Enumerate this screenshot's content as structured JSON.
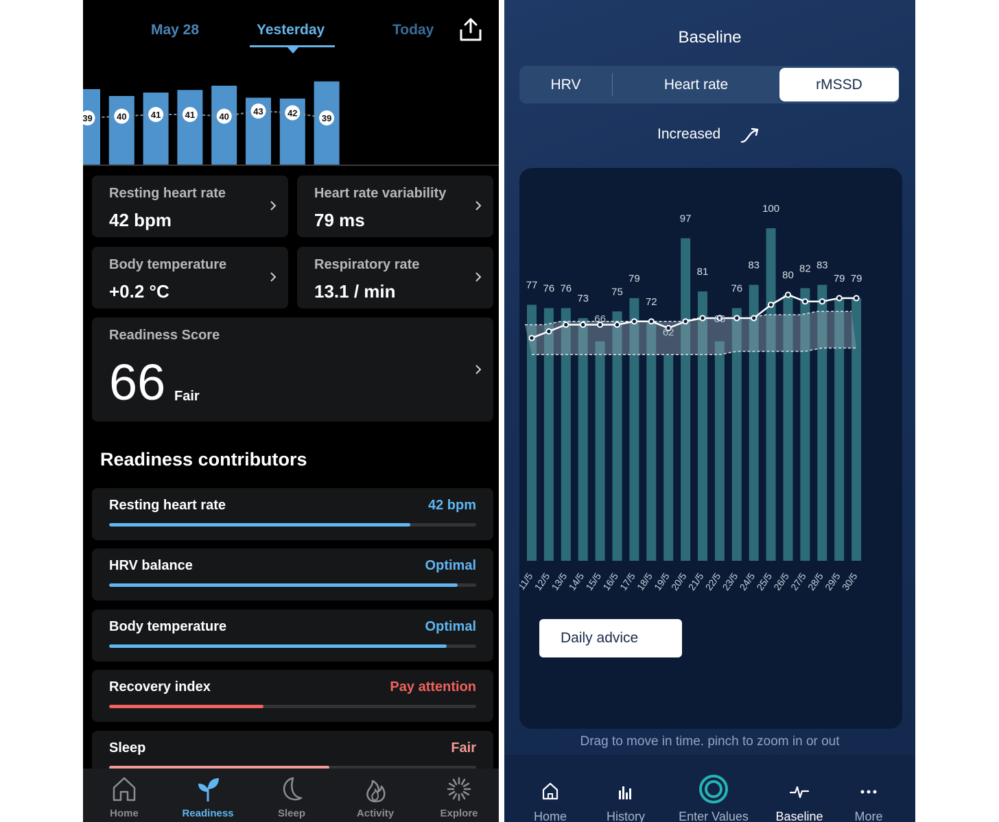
{
  "readiness_app": {
    "date_tabs": {
      "prev": "May 28",
      "current": "Yesterday",
      "next": "Today"
    },
    "daily_chart": {
      "values": [
        39,
        40,
        41,
        41,
        40,
        43,
        42,
        39
      ],
      "bar_levels": [
        0.88,
        0.8,
        0.84,
        0.87,
        0.92,
        0.78,
        0.77,
        0.97
      ]
    },
    "metrics": [
      {
        "label": "Resting heart rate",
        "value": "42 bpm"
      },
      {
        "label": "Heart rate variability",
        "value": "79 ms"
      },
      {
        "label": "Body temperature",
        "value": "+0.2 °C"
      },
      {
        "label": "Respiratory rate",
        "value": "13.1 / min"
      }
    ],
    "readiness": {
      "label": "Readiness Score",
      "score": "66",
      "rating": "Fair"
    },
    "contributors_title": "Readiness contributors",
    "contributors": [
      {
        "label": "Resting heart rate",
        "value": "42 bpm",
        "progress": 0.82,
        "color": "#5fb6f2"
      },
      {
        "label": "HRV balance",
        "value": "Optimal",
        "progress": 0.95,
        "color": "#5fb6f2"
      },
      {
        "label": "Body temperature",
        "value": "Optimal",
        "progress": 0.92,
        "color": "#5fb6f2"
      },
      {
        "label": "Recovery index",
        "value": "Pay attention",
        "progress": 0.42,
        "color": "#f0625e"
      },
      {
        "label": "Sleep",
        "value": "Fair",
        "progress": 0.6,
        "color": "#f29b96"
      }
    ],
    "nav": [
      {
        "label": "Home",
        "icon": "home-icon",
        "active": false
      },
      {
        "label": "Readiness",
        "icon": "sprout-icon",
        "active": true
      },
      {
        "label": "Sleep",
        "icon": "moon-icon",
        "active": false
      },
      {
        "label": "Activity",
        "icon": "flame-icon",
        "active": false
      },
      {
        "label": "Explore",
        "icon": "sunburst-icon",
        "active": false
      }
    ],
    "colors": {
      "accent": "#66b4ea",
      "bar": "#4f93cc",
      "warning": "#f0625e"
    }
  },
  "baseline_app": {
    "title": "Baseline",
    "segments": [
      "HRV",
      "Heart rate",
      "rMSSD"
    ],
    "active_segment": "rMSSD",
    "trend": "Increased",
    "advice_button": "Daily advice",
    "hint": "Drag to move in time. pinch to zoom in or out",
    "nav": [
      {
        "label": "Home",
        "icon": "home-icon"
      },
      {
        "label": "History",
        "icon": "bar-chart-icon"
      },
      {
        "label": "Enter Values",
        "icon": "ring-icon"
      },
      {
        "label": "Baseline",
        "icon": "pulse-icon",
        "active": true
      },
      {
        "label": "More",
        "icon": "dots-icon"
      }
    ]
  },
  "chart_data": {
    "type": "bar",
    "categories": [
      "11/5",
      "12/5",
      "13/5",
      "14/5",
      "15/5",
      "16/5",
      "17/5",
      "18/5",
      "19/5",
      "20/5",
      "21/5",
      "22/5",
      "23/5",
      "24/5",
      "25/5",
      "26/5",
      "27/5",
      "28/5",
      "29/5",
      "30/5"
    ],
    "series": [
      {
        "type": "bar",
        "values": [
          77,
          76,
          76,
          73,
          66,
          75,
          79,
          72,
          62,
          97,
          81,
          66,
          76,
          83,
          100,
          80,
          82,
          83,
          79,
          79
        ]
      },
      {
        "type": "line",
        "values": [
          67,
          69,
          71,
          71,
          71,
          71,
          72,
          72,
          70,
          72,
          73,
          73,
          73,
          73,
          77,
          80,
          78,
          78,
          79,
          79
        ]
      },
      {
        "type": "band",
        "upper": [
          71,
          71,
          72,
          72,
          72,
          72,
          72,
          72,
          72,
          72,
          73,
          73,
          73,
          73,
          74,
          74,
          74,
          75,
          75,
          75
        ],
        "lower": [
          62,
          62,
          62,
          62,
          62,
          62,
          62,
          62,
          62,
          62,
          62,
          62,
          63,
          63,
          63,
          63,
          63,
          64,
          64,
          64
        ]
      }
    ],
    "ylim": [
      0,
      100
    ],
    "grid": false,
    "colors": {
      "bar": "#2d6b79",
      "line": "#ffffff",
      "band": "#8c9fae"
    }
  }
}
